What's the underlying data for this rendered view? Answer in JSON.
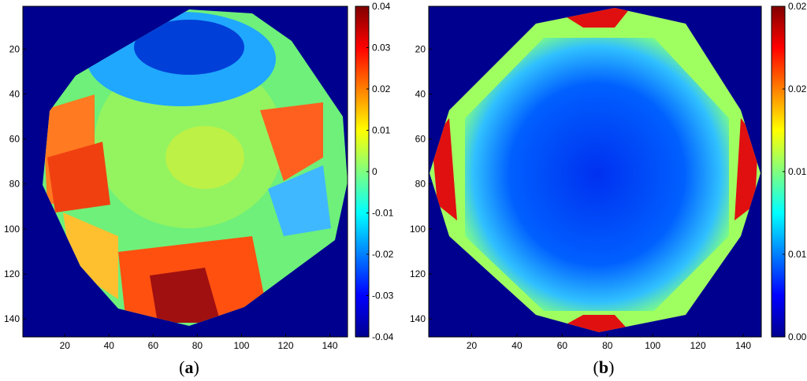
{
  "chart_data": [
    {
      "type": "heatmap",
      "panel_label": "a",
      "xlim": [
        1,
        148
      ],
      "ylim": [
        1,
        148
      ],
      "y_reversed": true,
      "x_ticks": [
        20,
        40,
        60,
        80,
        100,
        120,
        140
      ],
      "y_ticks": [
        20,
        40,
        60,
        80,
        100,
        120,
        140
      ],
      "colorbar": {
        "min": -0.04,
        "max": 0.04,
        "ticks": [
          "0.04",
          "0.03",
          "0.02",
          "0.01",
          "0",
          "-0.01",
          "-0.02",
          "-0.03",
          "-0.04"
        ],
        "colormap": "jet"
      }
    },
    {
      "type": "heatmap",
      "panel_label": "b",
      "xlim": [
        1,
        148
      ],
      "ylim": [
        1,
        148
      ],
      "y_reversed": true,
      "x_ticks": [
        20,
        40,
        60,
        80,
        100,
        120,
        140
      ],
      "y_ticks": [
        20,
        40,
        60,
        80,
        100,
        120,
        140
      ],
      "colorbar": {
        "min": 0.005,
        "max": 0.025,
        "ticks": [
          "0.025",
          "0.02",
          "0.015",
          "0.01",
          "0.005"
        ],
        "colormap": "jet"
      }
    }
  ],
  "captions": {
    "a_open": "(",
    "a_letter": "a",
    "a_close": ")",
    "b_open": "(",
    "b_letter": "b",
    "b_close": ")"
  },
  "colors": {
    "background": "#00008f",
    "jet": [
      "#00008f",
      "#0000ff",
      "#00ffff",
      "#ffff00",
      "#ff0000",
      "#800000"
    ]
  }
}
